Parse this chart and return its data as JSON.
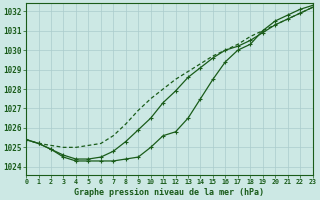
{
  "title": "Graphe pression niveau de la mer (hPa)",
  "x_labels": [
    "0",
    "1",
    "2",
    "3",
    "4",
    "5",
    "6",
    "7",
    "8",
    "9",
    "10",
    "11",
    "12",
    "13",
    "14",
    "15",
    "16",
    "17",
    "18",
    "19",
    "20",
    "21",
    "22",
    "23"
  ],
  "xlim": [
    0,
    23
  ],
  "ylim": [
    1023.6,
    1032.4
  ],
  "yticks": [
    1024,
    1025,
    1026,
    1027,
    1028,
    1029,
    1030,
    1031,
    1032
  ],
  "background_color": "#cce8e4",
  "grid_color": "#aacccc",
  "line_color": "#1a5c1a",
  "curve_upper_y": [
    1025.4,
    1025.2,
    1025.1,
    1025.0,
    1025.0,
    1025.1,
    1025.2,
    1025.6,
    1026.2,
    1026.9,
    1027.5,
    1028.0,
    1028.5,
    1028.9,
    1029.3,
    1029.7,
    1030.0,
    1030.3,
    1030.7,
    1031.0,
    1031.3,
    1031.6,
    1031.9,
    1032.2
  ],
  "curve_mid_y": [
    1025.4,
    1025.2,
    1024.9,
    1024.6,
    1024.4,
    1024.4,
    1024.5,
    1024.8,
    1025.3,
    1025.9,
    1026.5,
    1027.3,
    1027.9,
    1028.6,
    1029.1,
    1029.6,
    1030.0,
    1030.2,
    1030.5,
    1030.9,
    1031.3,
    1031.6,
    1031.9,
    1032.2
  ],
  "curve_lower_y": [
    1025.4,
    1025.2,
    1024.9,
    1024.5,
    1024.3,
    1024.3,
    1024.3,
    1024.3,
    1024.4,
    1024.5,
    1025.0,
    1025.6,
    1025.8,
    1026.5,
    1027.5,
    1028.5,
    1029.4,
    1030.0,
    1030.3,
    1031.0,
    1031.5,
    1031.8,
    1032.1,
    1032.3
  ]
}
